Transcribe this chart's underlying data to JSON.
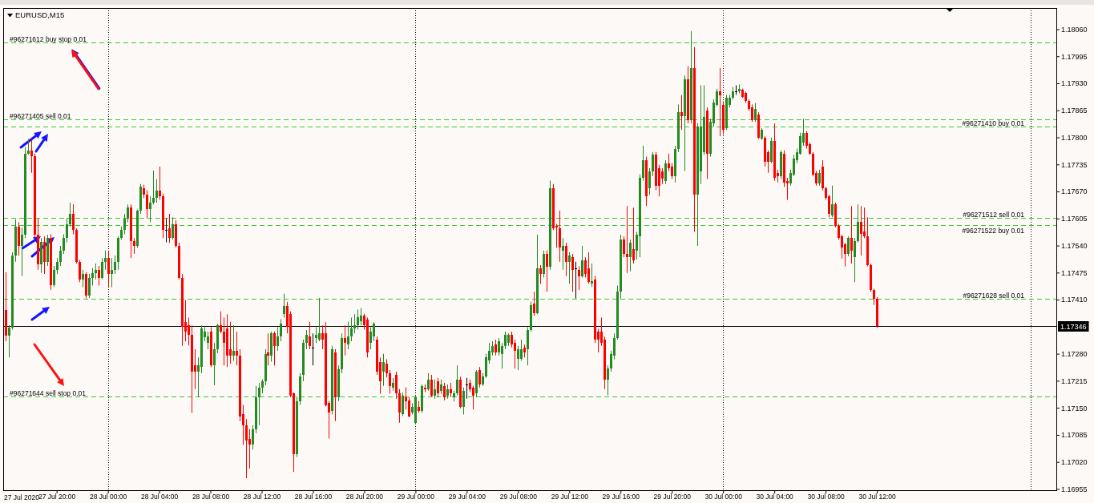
{
  "chart_data": {
    "type": "candlestick",
    "title": "EURUSD,M15",
    "x": [
      "2020-07-27T16:00",
      "2020-07-27T16:15",
      "2020-07-27T16:30",
      "2020-07-27T16:45",
      "2020-07-27T17:00",
      "2020-07-27T17:15",
      "2020-07-27T17:30",
      "2020-07-27T17:45",
      "2020-07-27T18:00",
      "2020-07-27T18:15",
      "2020-07-27T18:30",
      "2020-07-27T18:45",
      "2020-07-27T19:00",
      "2020-07-27T19:15",
      "2020-07-27T19:30",
      "2020-07-27T19:45",
      "2020-07-27T20:00",
      "2020-07-27T20:15",
      "2020-07-27T20:30",
      "2020-07-27T20:45",
      "2020-07-27T21:00",
      "2020-07-27T21:15",
      "2020-07-27T21:30",
      "2020-07-27T21:45",
      "2020-07-27T22:00",
      "2020-07-27T22:15",
      "2020-07-27T22:30",
      "2020-07-27T22:45",
      "2020-07-27T23:00",
      "2020-07-27T23:15",
      "2020-07-27T23:30",
      "2020-07-27T23:45",
      "2020-07-28T00:00",
      "2020-07-28T00:15",
      "2020-07-28T00:30",
      "2020-07-28T00:45",
      "2020-07-28T01:00",
      "2020-07-28T01:15",
      "2020-07-28T01:30",
      "2020-07-28T01:45",
      "2020-07-28T02:00",
      "2020-07-28T02:15",
      "2020-07-28T02:30",
      "2020-07-28T02:45",
      "2020-07-28T03:00",
      "2020-07-28T03:15",
      "2020-07-28T03:30",
      "2020-07-28T03:45",
      "2020-07-28T04:00",
      "2020-07-28T04:15",
      "2020-07-28T04:30",
      "2020-07-28T04:45",
      "2020-07-28T05:00",
      "2020-07-28T05:15",
      "2020-07-28T05:30",
      "2020-07-28T05:45",
      "2020-07-28T06:00",
      "2020-07-28T06:15",
      "2020-07-28T06:30",
      "2020-07-28T06:45",
      "2020-07-28T07:00",
      "2020-07-28T07:15",
      "2020-07-28T07:30",
      "2020-07-28T07:45",
      "2020-07-28T08:00",
      "2020-07-28T08:15",
      "2020-07-28T08:30",
      "2020-07-28T08:45",
      "2020-07-28T09:00",
      "2020-07-28T09:15",
      "2020-07-28T09:30",
      "2020-07-28T09:45",
      "2020-07-28T10:00",
      "2020-07-28T10:15",
      "2020-07-28T10:30",
      "2020-07-28T10:45",
      "2020-07-28T11:00",
      "2020-07-28T11:15",
      "2020-07-28T11:30",
      "2020-07-28T11:45",
      "2020-07-28T12:00",
      "2020-07-28T12:15",
      "2020-07-28T12:30",
      "2020-07-28T12:45",
      "2020-07-28T13:00",
      "2020-07-28T13:15",
      "2020-07-28T13:30",
      "2020-07-28T13:45",
      "2020-07-28T14:00",
      "2020-07-28T14:15",
      "2020-07-28T14:30",
      "2020-07-28T14:45",
      "2020-07-28T15:00",
      "2020-07-28T15:15",
      "2020-07-28T15:30",
      "2020-07-28T15:45",
      "2020-07-28T16:00",
      "2020-07-28T16:15",
      "2020-07-28T16:30",
      "2020-07-28T16:45",
      "2020-07-28T17:00",
      "2020-07-28T17:15",
      "2020-07-28T17:30",
      "2020-07-28T17:45",
      "2020-07-28T18:00",
      "2020-07-28T18:15",
      "2020-07-28T18:30",
      "2020-07-28T18:45",
      "2020-07-28T19:00",
      "2020-07-28T19:15",
      "2020-07-28T19:30",
      "2020-07-28T19:45",
      "2020-07-28T20:00",
      "2020-07-28T20:15",
      "2020-07-28T20:30",
      "2020-07-28T20:45",
      "2020-07-28T21:00",
      "2020-07-28T21:15",
      "2020-07-28T21:30",
      "2020-07-28T21:45",
      "2020-07-28T22:00",
      "2020-07-28T22:15",
      "2020-07-28T22:30",
      "2020-07-28T22:45",
      "2020-07-28T23:00",
      "2020-07-28T23:15",
      "2020-07-28T23:30",
      "2020-07-28T23:45",
      "2020-07-29T00:00",
      "2020-07-29T00:15",
      "2020-07-29T00:30",
      "2020-07-29T00:45",
      "2020-07-29T01:00",
      "2020-07-29T01:15",
      "2020-07-29T01:30",
      "2020-07-29T01:45",
      "2020-07-29T02:00",
      "2020-07-29T02:15",
      "2020-07-29T02:30",
      "2020-07-29T02:45",
      "2020-07-29T03:00",
      "2020-07-29T03:15",
      "2020-07-29T03:30",
      "2020-07-29T03:45",
      "2020-07-29T04:00",
      "2020-07-29T04:15",
      "2020-07-29T04:30",
      "2020-07-29T04:45",
      "2020-07-29T05:00",
      "2020-07-29T05:15",
      "2020-07-29T05:30",
      "2020-07-29T05:45",
      "2020-07-29T06:00",
      "2020-07-29T06:15",
      "2020-07-29T06:30",
      "2020-07-29T06:45",
      "2020-07-29T07:00",
      "2020-07-29T07:15",
      "2020-07-29T07:30",
      "2020-07-29T07:45",
      "2020-07-29T08:00",
      "2020-07-29T08:15",
      "2020-07-29T08:30",
      "2020-07-29T08:45",
      "2020-07-29T09:00",
      "2020-07-29T09:15",
      "2020-07-29T09:30",
      "2020-07-29T09:45",
      "2020-07-29T10:00",
      "2020-07-29T10:15",
      "2020-07-29T10:30",
      "2020-07-29T10:45",
      "2020-07-29T11:00",
      "2020-07-29T11:15",
      "2020-07-29T11:30",
      "2020-07-29T11:45",
      "2020-07-29T12:00",
      "2020-07-29T12:15",
      "2020-07-29T12:30",
      "2020-07-29T12:45",
      "2020-07-29T13:00",
      "2020-07-29T13:15",
      "2020-07-29T13:30",
      "2020-07-29T13:45",
      "2020-07-29T14:00",
      "2020-07-29T14:15",
      "2020-07-29T14:30",
      "2020-07-29T14:45",
      "2020-07-29T15:00",
      "2020-07-29T15:15",
      "2020-07-29T15:30",
      "2020-07-29T15:45",
      "2020-07-29T16:00",
      "2020-07-29T16:15",
      "2020-07-29T16:30",
      "2020-07-29T16:45",
      "2020-07-29T17:00",
      "2020-07-29T17:15",
      "2020-07-29T17:30",
      "2020-07-29T17:45",
      "2020-07-29T18:00",
      "2020-07-29T18:15",
      "2020-07-29T18:30",
      "2020-07-29T18:45",
      "2020-07-29T19:00",
      "2020-07-29T19:15",
      "2020-07-29T19:30",
      "2020-07-29T19:45",
      "2020-07-29T20:00",
      "2020-07-29T20:15",
      "2020-07-29T20:30",
      "2020-07-29T20:45",
      "2020-07-29T21:00",
      "2020-07-29T21:15",
      "2020-07-29T21:30",
      "2020-07-29T21:45",
      "2020-07-29T22:00",
      "2020-07-29T22:15",
      "2020-07-29T22:30",
      "2020-07-29T22:45",
      "2020-07-29T23:00",
      "2020-07-29T23:15",
      "2020-07-29T23:30",
      "2020-07-29T23:45",
      "2020-07-30T00:00",
      "2020-07-30T00:15",
      "2020-07-30T00:30",
      "2020-07-30T00:45",
      "2020-07-30T01:00",
      "2020-07-30T01:15",
      "2020-07-30T01:30",
      "2020-07-30T01:45",
      "2020-07-30T02:00",
      "2020-07-30T02:15",
      "2020-07-30T02:30",
      "2020-07-30T02:45",
      "2020-07-30T03:00",
      "2020-07-30T03:15",
      "2020-07-30T03:30",
      "2020-07-30T03:45",
      "2020-07-30T04:00",
      "2020-07-30T04:15",
      "2020-07-30T04:30",
      "2020-07-30T04:45",
      "2020-07-30T05:00",
      "2020-07-30T05:15",
      "2020-07-30T05:30",
      "2020-07-30T05:45",
      "2020-07-30T06:00",
      "2020-07-30T06:15",
      "2020-07-30T06:30",
      "2020-07-30T06:45",
      "2020-07-30T07:00",
      "2020-07-30T07:15",
      "2020-07-30T07:30",
      "2020-07-30T07:45",
      "2020-07-30T08:00",
      "2020-07-30T08:15",
      "2020-07-30T08:30",
      "2020-07-30T08:45",
      "2020-07-30T09:00",
      "2020-07-30T09:15",
      "2020-07-30T09:30",
      "2020-07-30T09:45",
      "2020-07-30T10:00",
      "2020-07-30T10:15",
      "2020-07-30T10:30",
      "2020-07-30T10:45",
      "2020-07-30T11:00",
      "2020-07-30T11:15",
      "2020-07-30T11:30",
      "2020-07-30T11:45",
      "2020-07-30T12:00"
    ],
    "ohlc": [
      [
        1.17386,
        1.17476,
        1.1731,
        1.17323
      ],
      [
        1.17323,
        1.17348,
        1.17271,
        1.17342
      ],
      [
        1.17342,
        1.17524,
        1.17338,
        1.17516
      ],
      [
        1.17516,
        1.17603,
        1.17501,
        1.17586
      ],
      [
        1.17586,
        1.17596,
        1.17516,
        1.17539
      ],
      [
        1.17539,
        1.17583,
        1.17467,
        1.17566
      ],
      [
        1.17566,
        1.17777,
        1.17558,
        1.17761
      ],
      [
        1.17761,
        1.17796,
        1.17758,
        1.17769
      ],
      [
        1.17769,
        1.17796,
        1.17715,
        1.17754
      ],
      [
        1.17754,
        1.17761,
        1.17558,
        1.17566
      ],
      [
        1.17566,
        1.17605,
        1.17482,
        1.17495
      ],
      [
        1.17495,
        1.17558,
        1.17474,
        1.17548
      ],
      [
        1.17548,
        1.17562,
        1.17472,
        1.17501
      ],
      [
        1.17501,
        1.17566,
        1.17491,
        1.17558
      ],
      [
        1.17558,
        1.17567,
        1.17434,
        1.17444
      ],
      [
        1.17444,
        1.17491,
        1.1744,
        1.17482
      ],
      [
        1.17482,
        1.1751,
        1.17472,
        1.17501
      ],
      [
        1.17501,
        1.17539,
        1.17491,
        1.17528
      ],
      [
        1.17528,
        1.17567,
        1.1752,
        1.17558
      ],
      [
        1.17558,
        1.17606,
        1.17548,
        1.17592
      ],
      [
        1.17592,
        1.17643,
        1.17586,
        1.17616
      ],
      [
        1.17616,
        1.17639,
        1.17567,
        1.17577
      ],
      [
        1.17577,
        1.17581,
        1.17497,
        1.17501
      ],
      [
        1.17501,
        1.17505,
        1.17452,
        1.17459
      ],
      [
        1.17459,
        1.17482,
        1.1744,
        1.17472
      ],
      [
        1.17472,
        1.17476,
        1.17413,
        1.1742
      ],
      [
        1.1742,
        1.17472,
        1.17414,
        1.17463
      ],
      [
        1.17463,
        1.17486,
        1.17444,
        1.17474
      ],
      [
        1.17474,
        1.17497,
        1.17459,
        1.17482
      ],
      [
        1.17482,
        1.17491,
        1.17444,
        1.17463
      ],
      [
        1.17463,
        1.1751,
        1.17459,
        1.17501
      ],
      [
        1.17501,
        1.17528,
        1.17482,
        1.1751
      ],
      [
        1.1751,
        1.17528,
        1.1744,
        1.17472
      ],
      [
        1.17472,
        1.1751,
        1.1744,
        1.17482
      ],
      [
        1.17482,
        1.17516,
        1.17472,
        1.17501
      ],
      [
        1.17501,
        1.17562,
        1.17482,
        1.17558
      ],
      [
        1.17558,
        1.17586,
        1.17554,
        1.17577
      ],
      [
        1.17577,
        1.17616,
        1.17567,
        1.17605
      ],
      [
        1.17605,
        1.17639,
        1.17596,
        1.17631
      ],
      [
        1.17631,
        1.17639,
        1.1751,
        1.1755
      ],
      [
        1.1755,
        1.17558,
        1.1752,
        1.17539
      ],
      [
        1.17539,
        1.17627,
        1.17535,
        1.17624
      ],
      [
        1.17624,
        1.17688,
        1.17616,
        1.17681
      ],
      [
        1.17677,
        1.17686,
        1.17654,
        1.17662
      ],
      [
        1.17662,
        1.17673,
        1.17606,
        1.17627
      ],
      [
        1.17627,
        1.17658,
        1.17596,
        1.17644
      ],
      [
        1.17644,
        1.1772,
        1.17639,
        1.17654
      ],
      [
        1.17654,
        1.177,
        1.17643,
        1.17673
      ],
      [
        1.17673,
        1.1773,
        1.1765,
        1.17658
      ],
      [
        1.17658,
        1.17665,
        1.17558,
        1.17577
      ],
      [
        1.17577,
        1.17605,
        1.17548,
        1.17577
      ],
      [
        1.17581,
        1.17616,
        1.17547,
        1.17558
      ],
      [
        1.17558,
        1.17608,
        1.17554,
        1.17592
      ],
      [
        1.17592,
        1.17601,
        1.17535,
        1.17539
      ],
      [
        1.17539,
        1.17547,
        1.17459,
        1.17463
      ],
      [
        1.17463,
        1.17472,
        1.17299,
        1.17344
      ],
      [
        1.17357,
        1.17409,
        1.1731,
        1.17333
      ],
      [
        1.17348,
        1.17367,
        1.173,
        1.17325
      ],
      [
        1.17325,
        1.17348,
        1.17138,
        1.17237
      ],
      [
        1.17252,
        1.17291,
        1.17195,
        1.17237
      ],
      [
        1.17237,
        1.17271,
        1.17176,
        1.17252
      ],
      [
        1.17248,
        1.17348,
        1.17233,
        1.1734
      ],
      [
        1.17319,
        1.17344,
        1.1731,
        1.17333
      ],
      [
        1.17306,
        1.17333,
        1.17291,
        1.17321
      ],
      [
        1.17333,
        1.17344,
        1.17248,
        1.17252
      ],
      [
        1.17252,
        1.17306,
        1.17204,
        1.17291
      ],
      [
        1.17291,
        1.17352,
        1.17281,
        1.17348
      ],
      [
        1.17348,
        1.17382,
        1.17329,
        1.17333
      ],
      [
        1.17333,
        1.17367,
        1.17252,
        1.17306
      ],
      [
        1.1734,
        1.17375,
        1.17248,
        1.17276
      ],
      [
        1.17291,
        1.17357,
        1.17256,
        1.17276
      ],
      [
        1.17276,
        1.17348,
        1.17263,
        1.17287
      ],
      [
        1.17287,
        1.17333,
        1.17252,
        1.17276
      ],
      [
        1.17276,
        1.17291,
        1.17118,
        1.1713
      ],
      [
        1.17134,
        1.17157,
        1.17061,
        1.17107
      ],
      [
        1.17107,
        1.17123,
        1.16981,
        1.17072
      ],
      [
        1.17076,
        1.17099,
        1.17004,
        1.17061
      ],
      [
        1.17061,
        1.17108,
        1.1705,
        1.17099
      ],
      [
        1.17099,
        1.17203,
        1.17089,
        1.17176
      ],
      [
        1.17176,
        1.1721,
        1.17108,
        1.17199
      ],
      [
        1.17199,
        1.17218,
        1.17185,
        1.17214
      ],
      [
        1.17214,
        1.17291,
        1.17204,
        1.1728
      ],
      [
        1.17283,
        1.17329,
        1.17252,
        1.17276
      ],
      [
        1.17276,
        1.17333,
        1.17261,
        1.17329
      ],
      [
        1.17329,
        1.17333,
        1.17252,
        1.17299
      ],
      [
        1.17299,
        1.17344,
        1.17287,
        1.17321
      ],
      [
        1.17321,
        1.17363,
        1.1731,
        1.17352
      ],
      [
        1.17375,
        1.17424,
        1.17367,
        1.17394
      ],
      [
        1.17394,
        1.17405,
        1.17329,
        1.17344
      ],
      [
        1.17375,
        1.17382,
        1.17176,
        1.1718
      ],
      [
        1.17184,
        1.17187,
        1.16996,
        1.17038
      ],
      [
        1.17038,
        1.17176,
        1.17032,
        1.17165
      ],
      [
        1.17165,
        1.17233,
        1.17157,
        1.17225
      ],
      [
        1.17229,
        1.17314,
        1.17214,
        1.17306
      ],
      [
        1.17306,
        1.17337,
        1.17291,
        1.17325
      ],
      [
        1.17321,
        1.17357,
        1.17291,
        1.17299
      ],
      [
        1.17295,
        1.17329,
        1.17252,
        1.17295
      ],
      [
        1.17318,
        1.17344,
        1.17306,
        1.17325
      ],
      [
        1.17314,
        1.17414,
        1.1731,
        1.17329
      ],
      [
        1.17329,
        1.17348,
        1.17291,
        1.17314
      ],
      [
        1.17329,
        1.17356,
        1.17153,
        1.17157
      ],
      [
        1.17161,
        1.17166,
        1.17076,
        1.17138
      ],
      [
        1.17142,
        1.17299,
        1.17134,
        1.17291
      ],
      [
        1.17283,
        1.17291,
        1.17118,
        1.17176
      ],
      [
        1.17176,
        1.17252,
        1.17166,
        1.17242
      ],
      [
        1.17242,
        1.17329,
        1.17233,
        1.17318
      ],
      [
        1.17318,
        1.17348,
        1.17276,
        1.17306
      ],
      [
        1.17302,
        1.17357,
        1.17291,
        1.17321
      ],
      [
        1.17321,
        1.17367,
        1.1731,
        1.1734
      ],
      [
        1.1734,
        1.17375,
        1.17329,
        1.17348
      ],
      [
        1.17348,
        1.17386,
        1.17338,
        1.17367
      ],
      [
        1.17359,
        1.1739,
        1.17348,
        1.17371
      ],
      [
        1.17371,
        1.17376,
        1.17338,
        1.17348
      ],
      [
        1.17363,
        1.17367,
        1.17271,
        1.17283
      ],
      [
        1.17306,
        1.17344,
        1.17291,
        1.17333
      ],
      [
        1.17321,
        1.17356,
        1.1731,
        1.17352
      ],
      [
        1.17314,
        1.17321,
        1.17229,
        1.17237
      ],
      [
        1.1726,
        1.17271,
        1.17184,
        1.17214
      ],
      [
        1.17237,
        1.1728,
        1.17203,
        1.1726
      ],
      [
        1.17256,
        1.17267,
        1.17223,
        1.17233
      ],
      [
        1.17233,
        1.17241,
        1.17184,
        1.17203
      ],
      [
        1.17199,
        1.17222,
        1.17191,
        1.1721
      ],
      [
        1.17229,
        1.17237,
        1.17172,
        1.17184
      ],
      [
        1.17184,
        1.17195,
        1.17114,
        1.17138
      ],
      [
        1.17134,
        1.17187,
        1.1713,
        1.1718
      ],
      [
        1.17176,
        1.17199,
        1.17146,
        1.17165
      ],
      [
        1.17168,
        1.17176,
        1.17127,
        1.1713
      ],
      [
        1.17138,
        1.17161,
        1.17134,
        1.17153
      ],
      [
        1.17114,
        1.1718,
        1.1711,
        1.17176
      ],
      [
        1.17153,
        1.17166,
        1.17138,
        1.17142
      ],
      [
        1.17142,
        1.17206,
        1.17138,
        1.17203
      ],
      [
        1.17199,
        1.17206,
        1.17188,
        1.17195
      ],
      [
        1.17195,
        1.17233,
        1.17191,
        1.17218
      ],
      [
        1.17218,
        1.17229,
        1.17176,
        1.1718
      ],
      [
        1.1718,
        1.17218,
        1.17172,
        1.17195
      ],
      [
        1.17214,
        1.17222,
        1.17176,
        1.17184
      ],
      [
        1.17191,
        1.17218,
        1.17184,
        1.17206
      ],
      [
        1.17203,
        1.1721,
        1.17168,
        1.17176
      ],
      [
        1.1718,
        1.17206,
        1.17172,
        1.17195
      ],
      [
        1.17195,
        1.1721,
        1.17176,
        1.17184
      ],
      [
        1.17176,
        1.17191,
        1.17165,
        1.17184
      ],
      [
        1.17184,
        1.17252,
        1.1718,
        1.17218
      ],
      [
        1.17218,
        1.17225,
        1.17149,
        1.17153
      ],
      [
        1.17153,
        1.17199,
        1.17134,
        1.17191
      ],
      [
        1.17206,
        1.17222,
        1.17172,
        1.17206
      ],
      [
        1.1721,
        1.17218,
        1.17188,
        1.17195
      ],
      [
        1.17199,
        1.17203,
        1.17146,
        1.1718
      ],
      [
        1.17184,
        1.17241,
        1.17176,
        1.17237
      ],
      [
        1.17241,
        1.17248,
        1.17199,
        1.17206
      ],
      [
        1.17206,
        1.17233,
        1.17203,
        1.17225
      ],
      [
        1.17225,
        1.1728,
        1.17222,
        1.17271
      ],
      [
        1.17263,
        1.17306,
        1.17256,
        1.17287
      ],
      [
        1.17283,
        1.1731,
        1.17276,
        1.17299
      ],
      [
        1.17302,
        1.17314,
        1.17276,
        1.17283
      ],
      [
        1.17283,
        1.17318,
        1.17276,
        1.1731
      ],
      [
        1.1728,
        1.17306,
        1.17244,
        1.17299
      ],
      [
        1.17299,
        1.17333,
        1.17291,
        1.17325
      ],
      [
        1.17306,
        1.17329,
        1.17299,
        1.17325
      ],
      [
        1.17325,
        1.17333,
        1.17295,
        1.17302
      ],
      [
        1.17306,
        1.17314,
        1.17244,
        1.17287
      ],
      [
        1.17267,
        1.17299,
        1.17241,
        1.17291
      ],
      [
        1.17267,
        1.17314,
        1.17263,
        1.17291
      ],
      [
        1.17295,
        1.17302,
        1.17271,
        1.17283
      ],
      [
        1.17291,
        1.17344,
        1.17252,
        1.17337
      ],
      [
        1.17337,
        1.17405,
        1.17333,
        1.17397
      ],
      [
        1.17401,
        1.17429,
        1.17371,
        1.17378
      ],
      [
        1.17378,
        1.17566,
        1.17375,
        1.17486
      ],
      [
        1.17486,
        1.17493,
        1.17448,
        1.17471
      ],
      [
        1.17471,
        1.17528,
        1.17463,
        1.1752
      ],
      [
        1.1752,
        1.17528,
        1.17429,
        1.1749
      ],
      [
        1.1749,
        1.17696,
        1.17482,
        1.17677
      ],
      [
        1.17677,
        1.17688,
        1.17577,
        1.17581
      ],
      [
        1.17588,
        1.17592,
        1.17535,
        1.17583
      ],
      [
        1.17581,
        1.17624,
        1.17501,
        1.17535
      ],
      [
        1.17528,
        1.17558,
        1.17482,
        1.17539
      ],
      [
        1.17539,
        1.17547,
        1.17467,
        1.17501
      ],
      [
        1.17501,
        1.17524,
        1.17448,
        1.17516
      ],
      [
        1.17512,
        1.1752,
        1.17429,
        1.17482
      ],
      [
        1.17486,
        1.17501,
        1.17413,
        1.17486
      ],
      [
        1.17482,
        1.1749,
        1.17433,
        1.17467
      ],
      [
        1.17467,
        1.17539,
        1.17463,
        1.17505
      ],
      [
        1.17505,
        1.17512,
        1.17463,
        1.17472
      ],
      [
        1.17486,
        1.17524,
        1.17448,
        1.17452
      ],
      [
        1.17448,
        1.17497,
        1.1744,
        1.17455
      ],
      [
        1.17459,
        1.17467,
        1.17306,
        1.17314
      ],
      [
        1.17333,
        1.1734,
        1.17283,
        1.17314
      ],
      [
        1.17333,
        1.17367,
        1.17299,
        1.17306
      ],
      [
        1.17314,
        1.17321,
        1.17195,
        1.17218
      ],
      [
        1.17218,
        1.17252,
        1.1718,
        1.17244
      ],
      [
        1.17244,
        1.17287,
        1.17237,
        1.1728
      ],
      [
        1.17276,
        1.17329,
        1.17267,
        1.17318
      ],
      [
        1.17318,
        1.17444,
        1.17314,
        1.17429
      ],
      [
        1.17429,
        1.17566,
        1.17413,
        1.17554
      ],
      [
        1.17554,
        1.17562,
        1.17512,
        1.1752
      ],
      [
        1.1752,
        1.17635,
        1.17474,
        1.17512
      ],
      [
        1.17512,
        1.17554,
        1.17478,
        1.17547
      ],
      [
        1.17531,
        1.17631,
        1.17497,
        1.17505
      ],
      [
        1.17528,
        1.17573,
        1.17507,
        1.17566
      ],
      [
        1.17562,
        1.17711,
        1.17512,
        1.17703
      ],
      [
        1.17703,
        1.1778,
        1.17696,
        1.17745
      ],
      [
        1.17745,
        1.17754,
        1.17635,
        1.17658
      ],
      [
        1.17677,
        1.17726,
        1.17662,
        1.17719
      ],
      [
        1.17719,
        1.17765,
        1.17707,
        1.17758
      ],
      [
        1.17758,
        1.17765,
        1.17673,
        1.17684
      ],
      [
        1.17726,
        1.17734,
        1.17658,
        1.17684
      ],
      [
        1.17719,
        1.17726,
        1.17688,
        1.177
      ],
      [
        1.17696,
        1.17745,
        1.17688,
        1.17738
      ],
      [
        1.17738,
        1.17761,
        1.17719,
        1.17726
      ],
      [
        1.1773,
        1.17738,
        1.177,
        1.17707
      ],
      [
        1.17707,
        1.1778,
        1.17692,
        1.17773
      ],
      [
        1.17773,
        1.17879,
        1.17765,
        1.1786
      ],
      [
        1.1786,
        1.17902,
        1.17818,
        1.17852
      ],
      [
        1.17852,
        1.17949,
        1.17719,
        1.1794
      ],
      [
        1.1794,
        1.17971,
        1.17834,
        1.17841
      ],
      [
        1.17841,
        1.18055,
        1.17834,
        1.17967
      ],
      [
        1.17967,
        1.18017,
        1.17573,
        1.17662
      ],
      [
        1.17662,
        1.17834,
        1.17539,
        1.17826
      ],
      [
        1.17719,
        1.17925,
        1.17688,
        1.17826
      ],
      [
        1.17765,
        1.17925,
        1.17758,
        1.17849
      ],
      [
        1.17864,
        1.17872,
        1.177,
        1.17761
      ],
      [
        1.17761,
        1.17845,
        1.17754,
        1.17837
      ],
      [
        1.17834,
        1.17891,
        1.17826,
        1.17883
      ],
      [
        1.17879,
        1.17917,
        1.17875,
        1.1791
      ],
      [
        1.1791,
        1.17967,
        1.17803,
        1.17902
      ],
      [
        1.17879,
        1.17887,
        1.17807,
        1.17818
      ],
      [
        1.17822,
        1.17902,
        1.17818,
        1.17895
      ],
      [
        1.17879,
        1.17902,
        1.17872,
        1.17895
      ],
      [
        1.17895,
        1.17921,
        1.17891,
        1.1791
      ],
      [
        1.1791,
        1.17925,
        1.17902,
        1.1791
      ],
      [
        1.1791,
        1.17927,
        1.17906,
        1.17917
      ],
      [
        1.17914,
        1.17917,
        1.17895,
        1.17898
      ],
      [
        1.17906,
        1.1791,
        1.17883,
        1.17887
      ],
      [
        1.17887,
        1.17891,
        1.17864,
        1.17868
      ],
      [
        1.17872,
        1.17879,
        1.17837,
        1.17841
      ],
      [
        1.17841,
        1.17883,
        1.17837,
        1.17868
      ],
      [
        1.17854,
        1.1786,
        1.17796,
        1.17799
      ],
      [
        1.17797,
        1.17822,
        1.17794,
        1.17818
      ],
      [
        1.17799,
        1.17803,
        1.1773,
        1.17741
      ],
      [
        1.17765,
        1.17769,
        1.17715,
        1.17741
      ],
      [
        1.17741,
        1.17799,
        1.17738,
        1.17792
      ],
      [
        1.17792,
        1.17834,
        1.17696,
        1.17703
      ],
      [
        1.17715,
        1.17722,
        1.17692,
        1.17707
      ],
      [
        1.17707,
        1.17769,
        1.177,
        1.17765
      ],
      [
        1.17761,
        1.17769,
        1.17681,
        1.17692
      ],
      [
        1.17696,
        1.17703,
        1.1765,
        1.1769
      ],
      [
        1.1769,
        1.17722,
        1.17684,
        1.17715
      ],
      [
        1.17711,
        1.17758,
        1.17707,
        1.17749
      ],
      [
        1.17745,
        1.17773,
        1.17738,
        1.17765
      ],
      [
        1.17761,
        1.17811,
        1.17758,
        1.17803
      ],
      [
        1.17788,
        1.17845,
        1.1778,
        1.17811
      ],
      [
        1.17811,
        1.17815,
        1.17773,
        1.1778
      ],
      [
        1.17784,
        1.17788,
        1.17758,
        1.17761
      ],
      [
        1.17761,
        1.17765,
        1.17707,
        1.17711
      ],
      [
        1.17715,
        1.17719,
        1.17684,
        1.1769
      ],
      [
        1.1769,
        1.17722,
        1.17684,
        1.17715
      ],
      [
        1.1773,
        1.17745,
        1.17673,
        1.17677
      ],
      [
        1.17677,
        1.17681,
        1.1765,
        1.17654
      ],
      [
        1.17658,
        1.17662,
        1.17608,
        1.17616
      ],
      [
        1.17612,
        1.17684,
        1.17608,
        1.17639
      ],
      [
        1.17639,
        1.17643,
        1.17584,
        1.17588
      ],
      [
        1.17588,
        1.17592,
        1.17554,
        1.17558
      ],
      [
        1.17562,
        1.17566,
        1.17509,
        1.17535
      ],
      [
        1.17543,
        1.17547,
        1.1749,
        1.1752
      ],
      [
        1.1752,
        1.17562,
        1.17514,
        1.17558
      ],
      [
        1.17558,
        1.17635,
        1.17497,
        1.17528
      ],
      [
        1.17512,
        1.17558,
        1.17452,
        1.1755
      ],
      [
        1.1755,
        1.17639,
        1.17547,
        1.17596
      ],
      [
        1.17596,
        1.17635,
        1.17516,
        1.17569
      ],
      [
        1.17573,
        1.17631,
        1.17558,
        1.17562
      ],
      [
        1.17562,
        1.17608,
        1.1749,
        1.17493
      ],
      [
        1.17493,
        1.17497,
        1.17429,
        1.17433
      ],
      [
        1.17433,
        1.17436,
        1.17397,
        1.17413
      ],
      [
        1.17413,
        1.17416,
        1.17342,
        1.17346
      ]
    ],
    "colors": [
      "#ff0000",
      "#228b22",
      "#228b22",
      "#228b22",
      "#ff0000",
      "#228b22",
      "#228b22",
      "#228b22",
      "#ff0000",
      "#ff0000",
      "#ff0000",
      "#228b22",
      "#ff0000",
      "#228b22",
      "#ff0000",
      "#228b22",
      "#228b22",
      "#228b22",
      "#228b22",
      "#228b22",
      "#228b22",
      "#ff0000",
      "#ff0000",
      "#ff0000",
      "#228b22",
      "#ff0000",
      "#228b22",
      "#228b22",
      "#228b22",
      "#ff0000",
      "#228b22",
      "#228b22",
      "#ff0000",
      "#228b22",
      "#228b22",
      "#228b22",
      "#228b22",
      "#228b22",
      "#228b22",
      "#ff0000",
      "#ff0000",
      "#228b22",
      "#228b22",
      "#ff0000",
      "#ff0000",
      "#228b22",
      "#228b22",
      "#228b22",
      "#ff0000",
      "#ff0000",
      "#000000",
      "#ff0000",
      "#228b22",
      "#ff0000",
      "#ff0000",
      "#ff0000",
      "#ff0000",
      "#ff0000",
      "#ff0000",
      "#ff0000",
      "#228b22",
      "#228b22",
      "#228b22",
      "#228b22",
      "#ff0000",
      "#228b22",
      "#228b22",
      "#ff0000",
      "#ff0000",
      "#ff0000",
      "#ff0000",
      "#228b22",
      "#ff0000",
      "#ff0000",
      "#ff0000",
      "#ff0000",
      "#ff0000",
      "#228b22",
      "#228b22",
      "#228b22",
      "#228b22",
      "#228b22",
      "#ff0000",
      "#228b22",
      "#ff0000",
      "#228b22",
      "#228b22",
      "#228b22",
      "#ff0000",
      "#ff0000",
      "#ff0000",
      "#228b22",
      "#228b22",
      "#228b22",
      "#228b22",
      "#ff0000",
      "#000000",
      "#228b22",
      "#228b22",
      "#ff0000",
      "#ff0000",
      "#ff0000",
      "#228b22",
      "#ff0000",
      "#228b22",
      "#228b22",
      "#ff0000",
      "#228b22",
      "#228b22",
      "#228b22",
      "#228b22",
      "#228b22",
      "#ff0000",
      "#ff0000",
      "#228b22",
      "#228b22",
      "#ff0000",
      "#ff0000",
      "#228b22",
      "#ff0000",
      "#ff0000",
      "#228b22",
      "#ff0000",
      "#ff0000",
      "#228b22",
      "#ff0000",
      "#ff0000",
      "#228b22",
      "#228b22",
      "#ff0000",
      "#228b22",
      "#ff0000",
      "#228b22",
      "#ff0000",
      "#228b22",
      "#ff0000",
      "#228b22",
      "#ff0000",
      "#228b22",
      "#ff0000",
      "#228b22",
      "#228b22",
      "#ff0000",
      "#228b22",
      "#000000",
      "#ff0000",
      "#ff0000",
      "#228b22",
      "#ff0000",
      "#228b22",
      "#228b22",
      "#228b22",
      "#228b22",
      "#ff0000",
      "#228b22",
      "#228b22",
      "#228b22",
      "#228b22",
      "#ff0000",
      "#ff0000",
      "#228b22",
      "#228b22",
      "#ff0000",
      "#228b22",
      "#228b22",
      "#ff0000",
      "#228b22",
      "#ff0000",
      "#228b22",
      "#ff0000",
      "#228b22",
      "#ff0000",
      "#ff0000",
      "#ff0000",
      "#228b22",
      "#ff0000",
      "#228b22",
      "#ff0000",
      "#000000",
      "#ff0000",
      "#228b22",
      "#ff0000",
      "#ff0000",
      "#228b22",
      "#ff0000",
      "#ff0000",
      "#ff0000",
      "#ff0000",
      "#228b22",
      "#228b22",
      "#228b22",
      "#228b22",
      "#228b22",
      "#ff0000",
      "#ff0000",
      "#228b22",
      "#ff0000",
      "#228b22",
      "#228b22",
      "#228b22",
      "#ff0000",
      "#228b22",
      "#228b22",
      "#ff0000",
      "#ff0000",
      "#ff0000",
      "#228b22",
      "#ff0000",
      "#ff0000",
      "#228b22",
      "#228b22",
      "#ff0000",
      "#228b22",
      "#ff0000",
      "#228b22",
      "#ff0000",
      "#228b22",
      "#228b22",
      "#228b22",
      "#ff0000",
      "#228b22",
      "#228b22",
      "#228b22",
      "#ff0000",
      "#ff0000",
      "#228b22",
      "#228b22",
      "#228b22",
      "#000000",
      "#228b22",
      "#ff0000",
      "#ff0000",
      "#ff0000",
      "#ff0000",
      "#228b22",
      "#ff0000",
      "#228b22",
      "#ff0000",
      "#ff0000",
      "#228b22",
      "#ff0000",
      "#ff0000",
      "#228b22",
      "#ff0000",
      "#ff0000",
      "#228b22",
      "#228b22",
      "#228b22",
      "#228b22",
      "#228b22",
      "#ff0000",
      "#ff0000",
      "#ff0000",
      "#ff0000",
      "#228b22",
      "#ff0000",
      "#ff0000",
      "#ff0000",
      "#228b22",
      "#ff0000",
      "#ff0000",
      "#ff0000",
      "#ff0000",
      "#228b22",
      "#ff0000",
      "#228b22",
      "#228b22",
      "#ff0000",
      "#ff0000",
      "#ff0000",
      "#ff0000",
      "#ff0000",
      "#ff0000"
    ],
    "xlim": [
      "2020-07-27T15:50",
      "2020-07-31T02:00"
    ],
    "xticks": [
      {
        "value": "2020-07-27T20:00",
        "label": "27 Jul 20:00"
      },
      {
        "value": "2020-07-28T00:00",
        "label": "28 Jul 00:00"
      },
      {
        "value": "2020-07-28T04:00",
        "label": "28 Jul 04:00"
      },
      {
        "value": "2020-07-28T08:00",
        "label": "28 Jul 08:00"
      },
      {
        "value": "2020-07-28T12:00",
        "label": "28 Jul 12:00"
      },
      {
        "value": "2020-07-28T16:00",
        "label": "28 Jul 16:00"
      },
      {
        "value": "2020-07-28T20:00",
        "label": "28 Jul 20:00"
      },
      {
        "value": "2020-07-29T00:00",
        "label": "29 Jul 00:00"
      },
      {
        "value": "2020-07-29T04:00",
        "label": "29 Jul 04:00"
      },
      {
        "value": "2020-07-29T08:00",
        "label": "29 Jul 08:00"
      },
      {
        "value": "2020-07-29T12:00",
        "label": "29 Jul 12:00"
      },
      {
        "value": "2020-07-29T16:00",
        "label": "29 Jul 16:00"
      },
      {
        "value": "2020-07-29T20:00",
        "label": "29 Jul 20:00"
      },
      {
        "value": "2020-07-30T00:00",
        "label": "30 Jul 00:00"
      },
      {
        "value": "2020-07-30T04:00",
        "label": "30 Jul 04:00"
      },
      {
        "value": "2020-07-30T08:00",
        "label": "30 Jul 08:00"
      },
      {
        "value": "2020-07-30T12:00",
        "label": "30 Jul 12:00"
      }
    ],
    "ylim": [
      1.16952,
      1.18111
    ],
    "yticks": [
      {
        "value": 1.1806,
        "label": "1.18060"
      },
      1.17995,
      {
        "value": 1.1793,
        "label": "1.17930"
      },
      1.17865,
      {
        "value": 1.178,
        "label": "1.17800"
      },
      1.17735,
      {
        "value": 1.1767,
        "label": "1.17670"
      },
      1.17605,
      {
        "value": 1.1754,
        "label": "1.17540"
      },
      1.17475,
      {
        "value": 1.1741,
        "label": "1.17410"
      },
      {
        "value": 1.1728,
        "label": "1.17280"
      },
      1.17215,
      {
        "value": 1.1715,
        "label": "1.17150"
      },
      1.17085,
      {
        "value": 1.1702,
        "label": "1.17020"
      },
      1.16955
    ],
    "ref_lines": [
      {
        "axis": "y",
        "value": 1.18029,
        "label": "#96271612 buy stop 0.01",
        "color": "#33cc33",
        "line_style": "dashed"
      },
      {
        "axis": "y",
        "value": 1.17843,
        "label": "#96271405 sell 0.01",
        "color": "#33cc33",
        "line_style": "dashed"
      },
      {
        "axis": "y",
        "value": 1.17826,
        "label": "#96271410 buy 0.01",
        "color": "#33cc33",
        "line_style": "dashed"
      },
      {
        "axis": "y",
        "value": 1.17607,
        "label": "#96271512 sell 0.01",
        "color": "#33cc33",
        "line_style": "dashed"
      },
      {
        "axis": "y",
        "value": 1.1759,
        "label": "#96271522 buy 0.01",
        "color": "#33cc33",
        "line_style": "dashed"
      },
      {
        "axis": "y",
        "value": 1.17413,
        "label": "#96271628 sell 0.01",
        "color": "#33cc33",
        "line_style": "dashed"
      },
      {
        "axis": "y",
        "value": 1.17178,
        "label": "#96271644 sell stop 0.01",
        "color": "#33cc33",
        "line_style": "dashed"
      },
      {
        "axis": "y",
        "value": 1.17346,
        "label": "1.17346",
        "color": "#000000",
        "line_style": "solid"
      },
      {
        "axis": "x",
        "value": "2020-07-28T00:00",
        "color": "#000000",
        "line_style": "dotted"
      },
      {
        "axis": "x",
        "value": "2020-07-29T00:00",
        "color": "#000000",
        "line_style": "dotted"
      },
      {
        "axis": "x",
        "value": "2020-07-30T00:00",
        "color": "#000000",
        "line_style": "dotted"
      },
      {
        "axis": "x",
        "value": "2020-07-31T00:00",
        "color": "#000000",
        "line_style": "dotted"
      }
    ],
    "annotations": [
      "27 Jul 2020"
    ]
  }
}
